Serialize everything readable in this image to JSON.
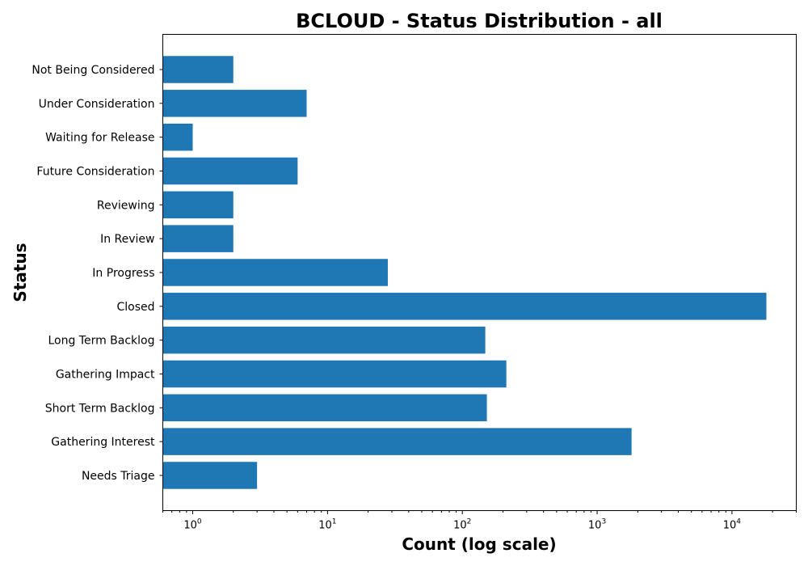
{
  "chart_data": {
    "type": "bar",
    "orientation": "horizontal",
    "title": "BCLOUD - Status Distribution - all",
    "xlabel": "Count (log scale)",
    "ylabel": "Status",
    "x_scale": "log",
    "xlim": [
      0.6,
      30000
    ],
    "x_ticks": [
      {
        "value": 1,
        "base": "10",
        "exp": "0"
      },
      {
        "value": 10,
        "base": "10",
        "exp": "1"
      },
      {
        "value": 100,
        "base": "10",
        "exp": "2"
      },
      {
        "value": 1000,
        "base": "10",
        "exp": "3"
      },
      {
        "value": 10000,
        "base": "10",
        "exp": "4"
      }
    ],
    "categories": [
      "Not Being Considered",
      "Under Consideration",
      "Waiting for Release",
      "Future Consideration",
      "Reviewing",
      "In Review",
      "In Progress",
      "Closed",
      "Long Term Backlog",
      "Gathering Impact",
      "Short Term Backlog",
      "Gathering Interest",
      "Needs Triage"
    ],
    "values": [
      2,
      7,
      1,
      6,
      2,
      2,
      28,
      18000,
      148,
      212,
      152,
      1800,
      3
    ],
    "color": "#1f77b4",
    "grid": false,
    "legend": "none"
  }
}
